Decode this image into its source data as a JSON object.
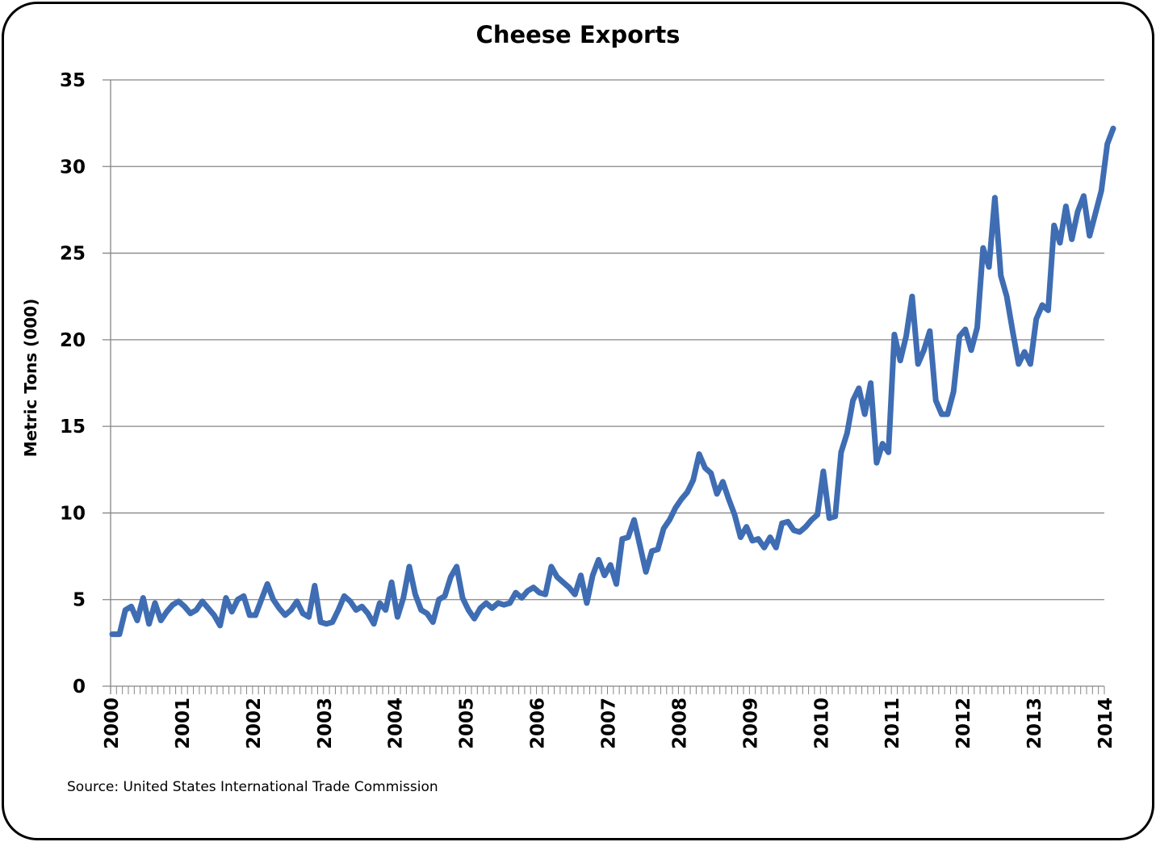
{
  "chart_data": {
    "type": "line",
    "title": "Cheese Exports",
    "xlabel": "",
    "ylabel": "Metric Tons (000)",
    "ylim": [
      0,
      35
    ],
    "yticks": [
      0,
      5,
      10,
      15,
      20,
      25,
      30,
      35
    ],
    "xlim": [
      2000,
      2014
    ],
    "xticks": [
      "2000",
      "2001",
      "2002",
      "2003",
      "2004",
      "2005",
      "2006",
      "2007",
      "2008",
      "2009",
      "2010",
      "2011",
      "2012",
      "2013",
      "2014"
    ],
    "grid": true,
    "legend": "none",
    "source": "Source: United States International Trade Commission",
    "series": [
      {
        "name": "Cheese Exports",
        "color": "#3F6DB3",
        "frequency": "monthly",
        "start": "2000-01",
        "values": [
          3.0,
          3.0,
          4.4,
          4.6,
          3.8,
          5.1,
          3.6,
          4.8,
          3.8,
          4.3,
          4.7,
          4.9,
          4.6,
          4.2,
          4.4,
          4.9,
          4.5,
          4.1,
          3.5,
          5.1,
          4.3,
          5.0,
          5.2,
          4.1,
          4.1,
          5.0,
          5.9,
          5.0,
          4.5,
          4.1,
          4.4,
          4.9,
          4.2,
          4.0,
          5.8,
          3.7,
          3.6,
          3.7,
          4.4,
          5.2,
          4.9,
          4.4,
          4.6,
          4.2,
          3.6,
          4.8,
          4.4,
          6.0,
          4.0,
          5.1,
          6.9,
          5.3,
          4.4,
          4.2,
          3.7,
          5.0,
          5.2,
          6.3,
          6.9,
          5.1,
          4.4,
          3.9,
          4.5,
          4.8,
          4.5,
          4.8,
          4.7,
          4.8,
          5.4,
          5.1,
          5.5,
          5.7,
          5.4,
          5.3,
          6.9,
          6.3,
          6.0,
          5.7,
          5.3,
          6.4,
          4.8,
          6.4,
          7.3,
          6.4,
          7.0,
          5.9,
          8.5,
          8.6,
          9.6,
          8.1,
          6.6,
          7.8,
          7.9,
          9.1,
          9.6,
          10.3,
          10.8,
          11.2,
          11.9,
          13.4,
          12.6,
          12.3,
          11.1,
          11.8,
          10.8,
          9.9,
          8.6,
          9.2,
          8.4,
          8.5,
          8.0,
          8.6,
          8.0,
          9.4,
          9.5,
          9.0,
          8.9,
          9.2,
          9.6,
          9.9,
          12.4,
          9.7,
          9.8,
          13.5,
          14.6,
          16.5,
          17.2,
          15.7,
          17.5,
          12.9,
          14.0,
          13.5,
          20.3,
          18.8,
          20.2,
          22.5,
          18.6,
          19.4,
          20.5,
          16.5,
          15.7,
          15.7,
          17.0,
          20.2,
          20.6,
          19.4,
          20.7,
          25.3,
          24.2,
          28.2,
          23.7,
          22.5,
          20.5,
          18.6,
          19.3,
          18.6,
          21.2,
          22.0,
          21.7,
          26.6,
          25.6,
          27.7,
          25.8,
          27.4,
          28.3,
          26.0,
          27.3,
          28.6,
          31.3,
          32.2
        ]
      }
    ]
  }
}
